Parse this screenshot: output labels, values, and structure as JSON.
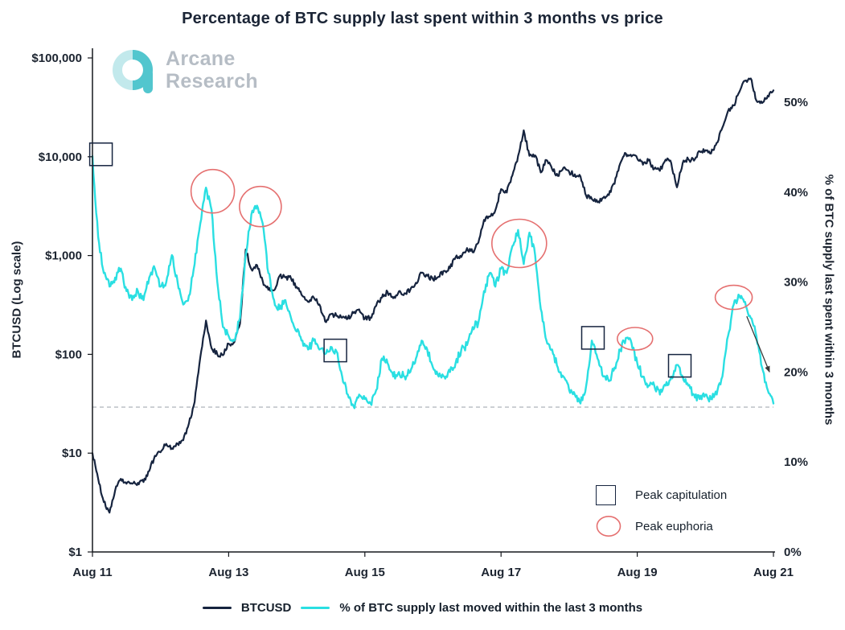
{
  "watermark": {
    "line1": "Arcane",
    "line2": "Research"
  },
  "axes": {
    "left_label": "BTCUSD (Log scale)",
    "right_label": "% of BTC supply last spent within 3 months"
  },
  "legend": {
    "btcusd_label": "BTCUSD",
    "supply_label": "% of BTC supply last moved within the last 3 months"
  },
  "annotation_legend": {
    "capitulation_label": "Peak capitulation",
    "euphoria_label": "Peak euphoria"
  },
  "colors": {
    "price_line": "#16243f",
    "supply_line": "#2adfe2",
    "euphoria_circle": "#e57070",
    "capitulation_square": "#16243f",
    "dashed_line": "#98a0a8",
    "arrow": "#3a3a3a"
  },
  "chart_data": {
    "type": "line",
    "title": "Percentage of BTC supply last spent within 3 months vs price",
    "x_unit": "months since Aug 2011",
    "x_max": 120,
    "x_ticks": [
      {
        "t": 0,
        "label": "Aug 11"
      },
      {
        "t": 24,
        "label": "Aug 13"
      },
      {
        "t": 48,
        "label": "Aug 15"
      },
      {
        "t": 72,
        "label": "Aug 17"
      },
      {
        "t": 96,
        "label": "Aug 19"
      },
      {
        "t": 120,
        "label": "Aug 21"
      }
    ],
    "price_axis": {
      "scale": "log",
      "range": [
        1,
        100000
      ],
      "ticks": [
        {
          "value": 1,
          "label": "$1"
        },
        {
          "value": 10,
          "label": "$10"
        },
        {
          "value": 100,
          "label": "$100"
        },
        {
          "value": 1000,
          "label": "$1,000"
        },
        {
          "value": 10000,
          "label": "$10,000"
        },
        {
          "value": 100000,
          "label": "$100,000"
        }
      ]
    },
    "pct_axis": {
      "range": [
        0,
        50
      ],
      "ticks": [
        {
          "value": 0,
          "label": "0%"
        },
        {
          "value": 10,
          "label": "10%"
        },
        {
          "value": 20,
          "label": "20%"
        },
        {
          "value": 30,
          "label": "30%"
        },
        {
          "value": 40,
          "label": "40%"
        },
        {
          "value": 50,
          "label": "50%"
        }
      ]
    },
    "dashed_line_pct": 16.1,
    "series": [
      {
        "name": "BTCUSD",
        "axis": "price",
        "color": "#16243f",
        "width": 2.2,
        "values": [
          10,
          5.5,
          3.2,
          2.5,
          4.2,
          5.5,
          4.9,
          4.9,
          5.0,
          5.1,
          6.6,
          9.4,
          10.2,
          12.4,
          11.2,
          12.5,
          13.5,
          20,
          33,
          93,
          220,
          115,
          100,
          98,
          128,
          133,
          204,
          1150,
          730,
          800,
          550,
          450,
          445,
          625,
          600,
          585,
          480,
          390,
          340,
          375,
          320,
          215,
          255,
          245,
          235,
          230,
          262,
          285,
          230,
          236,
          310,
          375,
          430,
          370,
          435,
          415,
          450,
          530,
          670,
          625,
          575,
          610,
          700,
          745,
          960,
          965,
          1190,
          1080,
          1350,
          2300,
          2480,
          2875,
          4700,
          4340,
          6470,
          10200,
          18500,
          10200,
          10300,
          6930,
          9240,
          7490,
          6400,
          7730,
          7030,
          6630,
          6320,
          4030,
          3740,
          3460,
          3850,
          4100,
          5320,
          8560,
          10780,
          10080,
          9600,
          8300,
          9150,
          7550,
          7200,
          9350,
          8600,
          4900,
          8630,
          9450,
          9140,
          11350,
          11650,
          10780,
          13800,
          19700,
          29000,
          33100,
          45200,
          58800,
          62000,
          37000,
          35000,
          41500,
          47000
        ]
      },
      {
        "name": "% of BTC supply last moved within the last 3 months",
        "axis": "pct",
        "color": "#2adfe2",
        "width": 2.4,
        "values": [
          44,
          35,
          31,
          29.5,
          30.5,
          31.5,
          29,
          28,
          29,
          28,
          30.5,
          31.5,
          29.5,
          30,
          33,
          30,
          27.5,
          28.5,
          32,
          36.5,
          40.5,
          38,
          30,
          25,
          24,
          23.5,
          26,
          33,
          37.5,
          38.5,
          36.5,
          31,
          28,
          27,
          28,
          26,
          24.5,
          23.5,
          22.5,
          23.5,
          22.5,
          22,
          22.8,
          22.3,
          19.5,
          17.5,
          16.2,
          17.5,
          17,
          16.5,
          18,
          21.5,
          21,
          19.5,
          20,
          19.5,
          20,
          21.5,
          23.5,
          22.5,
          20.5,
          19.5,
          19.5,
          20,
          21,
          22.5,
          23,
          25,
          25.5,
          29,
          31,
          29.5,
          31.5,
          31,
          34,
          35.8,
          32,
          35.5,
          33,
          27,
          23.5,
          22.5,
          20.5,
          19.5,
          18,
          17.5,
          16.5,
          18.5,
          23.5,
          21.5,
          19.5,
          19,
          20.5,
          22.5,
          23.8,
          23.2,
          21,
          19.5,
          18.5,
          18.5,
          17.5,
          18.5,
          19.5,
          20.8,
          19.5,
          18.5,
          17.5,
          17,
          17.5,
          17,
          17.5,
          19.5,
          24,
          27.5,
          28.5,
          27.8,
          26,
          24,
          20.5,
          18,
          16.5
        ]
      }
    ],
    "annotations": {
      "capitulation_squares": [
        {
          "t": 1.5,
          "pct": 44.2
        },
        {
          "t": 42.8,
          "pct": 22.4
        },
        {
          "t": 88.2,
          "pct": 23.8
        },
        {
          "t": 103.5,
          "pct": 20.7
        }
      ],
      "euphoria_circles": [
        {
          "t": 21.2,
          "pct": 40.1,
          "rx": 27,
          "ry": 27
        },
        {
          "t": 29.6,
          "pct": 38.4,
          "rx": 26,
          "ry": 25
        },
        {
          "t": 75.2,
          "pct": 34.3,
          "rx": 34,
          "ry": 30
        },
        {
          "t": 95.6,
          "pct": 23.7,
          "rx": 22,
          "ry": 14
        },
        {
          "t": 113.0,
          "pct": 28.3,
          "rx": 23,
          "ry": 15
        }
      ],
      "arrow": {
        "from_t": 115.3,
        "from_pct": 26.2,
        "to_t": 119.3,
        "to_pct": 20.0
      }
    }
  }
}
